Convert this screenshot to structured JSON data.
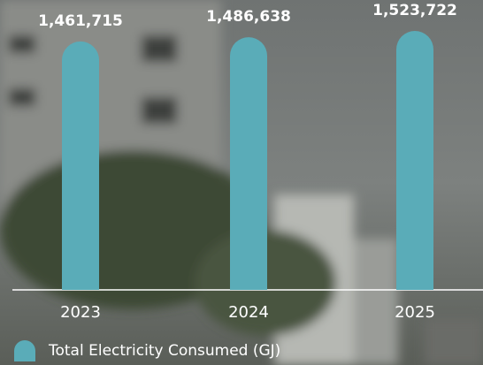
{
  "chart_data": {
    "type": "bar",
    "categories": [
      "2023",
      "2024",
      "2025"
    ],
    "series": [
      {
        "name": "Total Electricity Consumed (GJ)",
        "color": "#5aacb8",
        "values": [
          1461715,
          1486638,
          1523722
        ],
        "value_labels": [
          "1,461,715",
          "1,486,638",
          "1,523,722"
        ]
      }
    ]
  }
}
